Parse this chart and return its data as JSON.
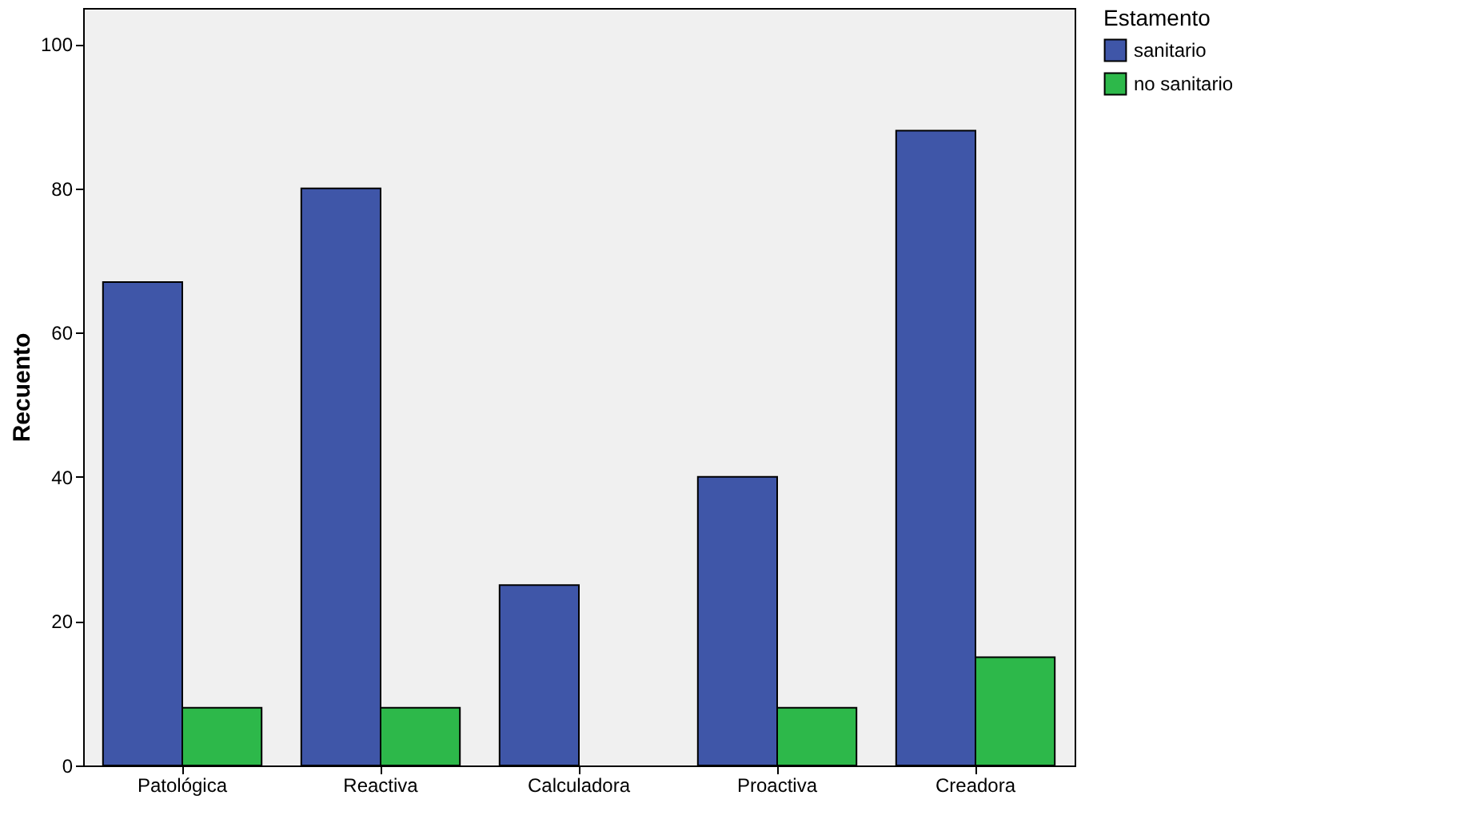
{
  "chart_data": {
    "type": "bar",
    "ylabel": "Recuento",
    "legend_title": "Estamento",
    "legend": "top right",
    "grid": false,
    "categories": [
      "Patológica",
      "Reactiva",
      "Calculadora",
      "Proactiva",
      "Creadora"
    ],
    "series": [
      {
        "name": "sanitario",
        "color": "#3f56a8",
        "values": [
          67,
          80,
          25,
          40,
          88
        ]
      },
      {
        "name": "no sanitario",
        "color": "#2db84a",
        "values": [
          8,
          8,
          null,
          8,
          15
        ]
      }
    ],
    "ylim": [
      0,
      105
    ],
    "yticks": [
      0,
      20,
      40,
      60,
      80,
      100
    ]
  }
}
